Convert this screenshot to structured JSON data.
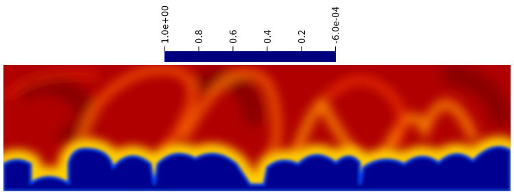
{
  "chart_data": {
    "type": "colorbar",
    "clim": [
      -0.0006,
      1
    ],
    "ticks": [
      {
        "value": 1,
        "label": "1.0e+00"
      },
      0.8,
      0.6,
      0.4,
      0.2,
      {
        "value": -0.0006,
        "label": "-6.0e-04"
      }
    ],
    "colors": [
      "#00007f",
      "#0000ff",
      "#00ffff",
      "#ffff00",
      "#ff0000",
      "#7f0000"
    ]
  }
}
